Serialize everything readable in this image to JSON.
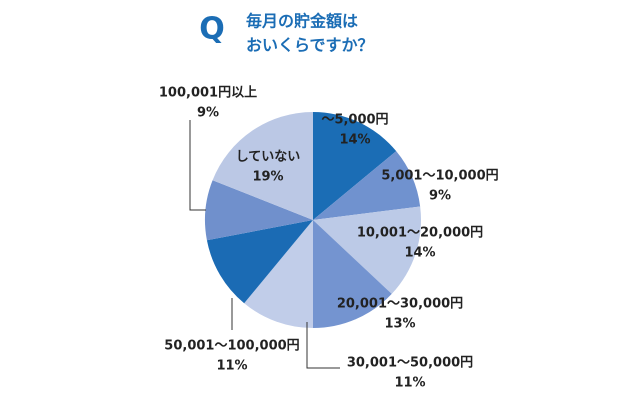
{
  "chart_data": {
    "type": "pie",
    "marker": "Q",
    "title": [
      "毎月の貯金額は",
      "おいくらですか？"
    ],
    "categories": [
      "〜5,000円",
      "5,001〜10,000円",
      "10,001〜20,000円",
      "20,001〜30,000円",
      "30,001〜50,000円",
      "50,001〜100,000円",
      "100,001円以上",
      "していない"
    ],
    "values": [
      14,
      9,
      14,
      13,
      11,
      11,
      9,
      19
    ],
    "value_labels": [
      "14%",
      "9%",
      "14%",
      "13%",
      "11%",
      "11%",
      "9%",
      "19%"
    ],
    "colors": [
      "#1b6db5",
      "#7092cf",
      "#bccae7",
      "#7494d0",
      "#c1cde9",
      "#1b6bb4",
      "#7090cc",
      "#bbc8e5"
    ]
  }
}
